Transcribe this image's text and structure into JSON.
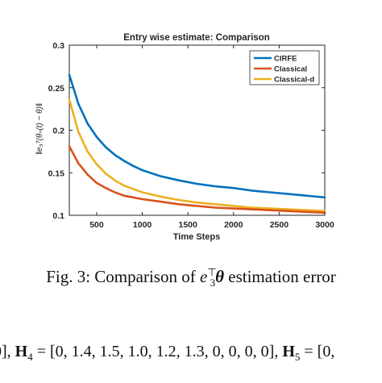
{
  "chart_data": {
    "type": "line",
    "title": "Entry wise estimate: Comparison",
    "xlabel": "Time Steps",
    "ylabel": "‖e₃ᵀ(θₙ(t) − θ)‖",
    "xlim": [
      200,
      3000
    ],
    "ylim": [
      0.1,
      0.3
    ],
    "xticks": [
      500,
      1000,
      1500,
      2000,
      2500,
      3000
    ],
    "yticks": [
      0.1,
      0.15,
      0.2,
      0.25,
      0.3
    ],
    "grid": false,
    "legend_position": "top-right",
    "x": [
      200,
      300,
      400,
      500,
      600,
      700,
      800,
      900,
      1000,
      1200,
      1400,
      1600,
      1800,
      2000,
      2200,
      2400,
      2600,
      2800,
      3000
    ],
    "series": [
      {
        "name": "CIRFE",
        "color": "#0072BD",
        "values": [
          0.265,
          0.231,
          0.208,
          0.192,
          0.18,
          0.171,
          0.164,
          0.158,
          0.153,
          0.146,
          0.141,
          0.137,
          0.134,
          0.132,
          0.129,
          0.127,
          0.125,
          0.123,
          0.121
        ]
      },
      {
        "name": "Classical",
        "color": "#D95319",
        "values": [
          0.181,
          0.161,
          0.148,
          0.138,
          0.132,
          0.127,
          0.123,
          0.121,
          0.119,
          0.116,
          0.113,
          0.111,
          0.109,
          0.108,
          0.107,
          0.106,
          0.105,
          0.104,
          0.103
        ]
      },
      {
        "name": "Classical-d",
        "color": "#EDB120",
        "values": [
          0.236,
          0.198,
          0.175,
          0.16,
          0.149,
          0.141,
          0.135,
          0.131,
          0.127,
          0.122,
          0.118,
          0.115,
          0.113,
          0.111,
          0.109,
          0.108,
          0.107,
          0.106,
          0.105
        ]
      }
    ]
  },
  "caption": {
    "prefix": "Fig. 3: Comparison of ",
    "e": "e",
    "sup": "⊤",
    "sub": "3",
    "theta": "θ",
    "suffix": " estimation error"
  },
  "body_text": {
    "lead": "0], ",
    "h4": "H",
    "h4_sub": "4",
    "h4_value": " = [0, 1.4, 1.5, 1.0, 1.2, 1.3, 0, 0, 0, 0], ",
    "h5": "H",
    "h5_sub": "5",
    "h5_value": " = [0,"
  }
}
